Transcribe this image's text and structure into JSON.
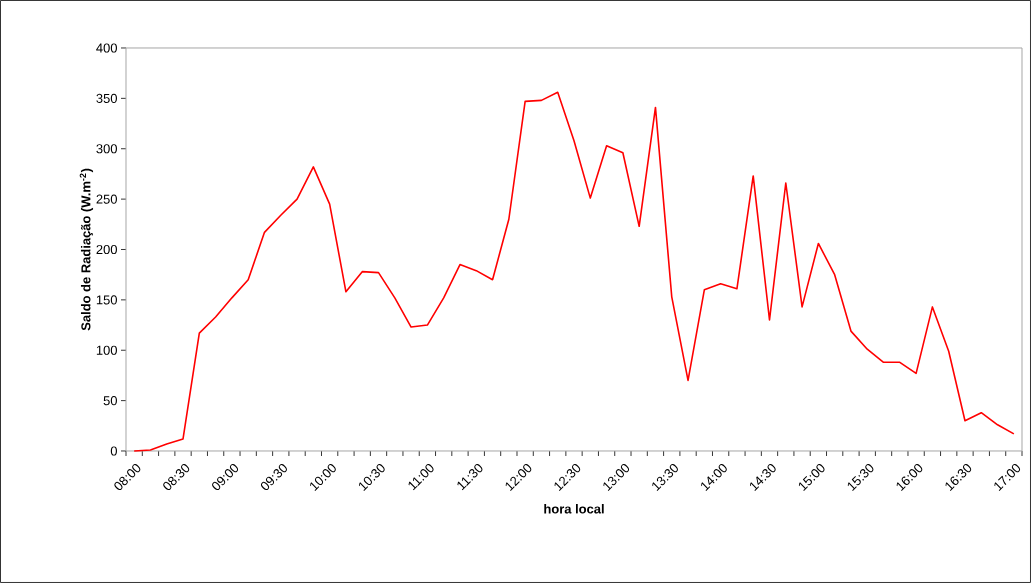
{
  "chart_data": {
    "type": "line",
    "xlabel": "hora local",
    "ylabel": "Saldo de Radiação (W.m$^{-2}$)",
    "categories": [
      "08:00",
      null,
      null,
      "08:30",
      null,
      null,
      "09:00",
      null,
      null,
      "09:30",
      null,
      null,
      "10:00",
      null,
      null,
      "10:30",
      null,
      null,
      "11:00",
      null,
      null,
      "11:30",
      null,
      null,
      "12:00",
      null,
      null,
      "12:30",
      null,
      null,
      "13:00",
      null,
      null,
      "13:30",
      null,
      null,
      "14:00",
      null,
      null,
      "14:30",
      null,
      null,
      "15:00",
      null,
      null,
      "15:30",
      null,
      null,
      "16:00",
      null,
      null,
      "16:30",
      null,
      null,
      "17:00"
    ],
    "series": [
      {
        "color": "#ff0000",
        "values": [
          0,
          1,
          7,
          12,
          117,
          133,
          152,
          170,
          217,
          234,
          250,
          282,
          245,
          158,
          178,
          177,
          152,
          123,
          125,
          152,
          185,
          179,
          170,
          230,
          347,
          348,
          356,
          308,
          251,
          303,
          296,
          223,
          341,
          153,
          70,
          160,
          166,
          161,
          273,
          130,
          266,
          143,
          206,
          175,
          119,
          101,
          88,
          88,
          77,
          143,
          99,
          30,
          38,
          26,
          17
        ]
      }
    ],
    "ylim": [
      0,
      400
    ],
    "yticks": [
      0,
      50,
      100,
      150,
      200,
      250,
      300,
      350,
      400
    ],
    "line_style": "solid",
    "grid": false
  }
}
